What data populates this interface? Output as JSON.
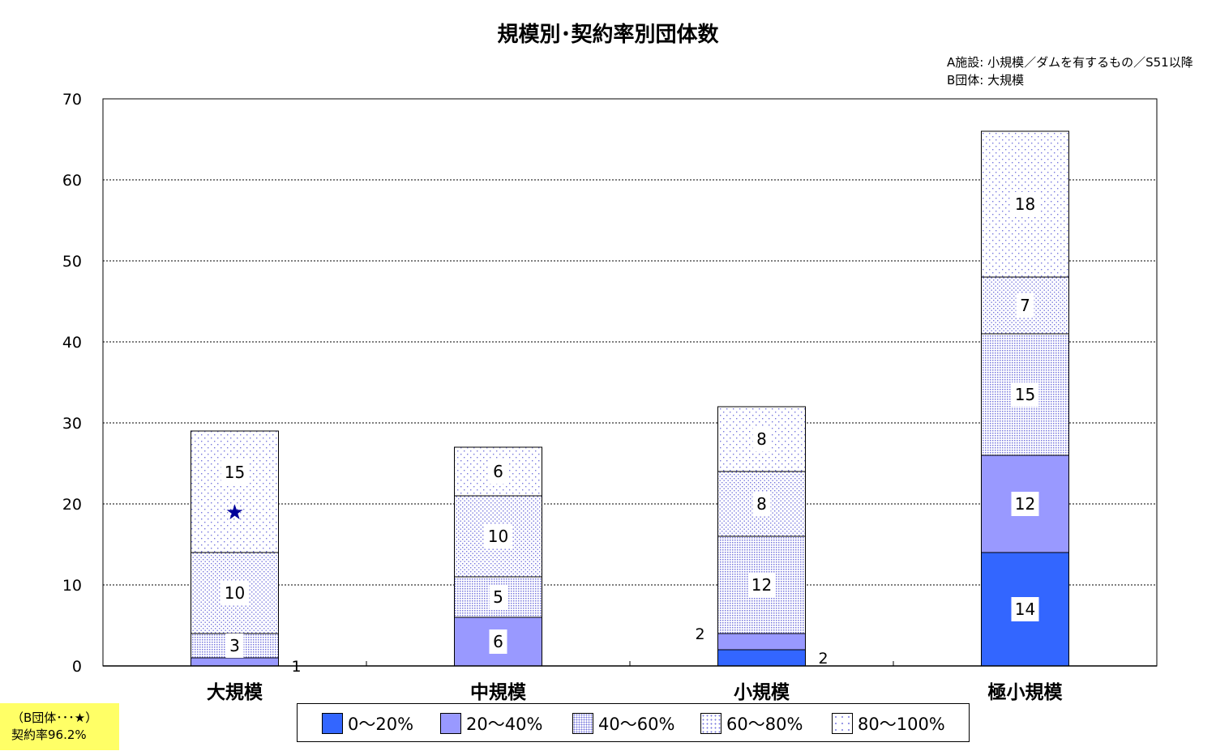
{
  "title": "規模別･契約率別団体数",
  "notes": {
    "line1": "A施設: 小規模／ダムを有するもの／S51以降",
    "line2": "B団体: 大規模"
  },
  "badge": {
    "line1": "（B団体･･･★）",
    "line2": "契約率96.2%"
  },
  "chart_data": {
    "type": "bar",
    "stacked": true,
    "title": "規模別･契約率別団体数",
    "categories": [
      "大規模",
      "中規模",
      "小規模",
      "極小規模"
    ],
    "ylim": [
      0,
      70
    ],
    "yticks": [
      0,
      10,
      20,
      30,
      40,
      50,
      60,
      70
    ],
    "grid": true,
    "legend_position": "bottom",
    "series": [
      {
        "name": "0～20%",
        "values": [
          0,
          0,
          2,
          14
        ],
        "color": "#3366ff",
        "pattern": "solid"
      },
      {
        "name": "20～40%",
        "values": [
          1,
          6,
          2,
          12
        ],
        "color": "#9999ff",
        "pattern": "solid"
      },
      {
        "name": "40～60%",
        "values": [
          3,
          5,
          12,
          15
        ],
        "color": "#8a8ae6",
        "pattern": "dense-dots"
      },
      {
        "name": "60～80%",
        "values": [
          10,
          10,
          8,
          7
        ],
        "color": "#8a8ae6",
        "pattern": "medium-dots"
      },
      {
        "name": "80～100%",
        "values": [
          15,
          6,
          8,
          18
        ],
        "color": "#8a8ae6",
        "pattern": "sparse-dots"
      }
    ],
    "marker": {
      "symbol": "★",
      "category": "大規模",
      "value": 19,
      "color": "#000099"
    }
  }
}
